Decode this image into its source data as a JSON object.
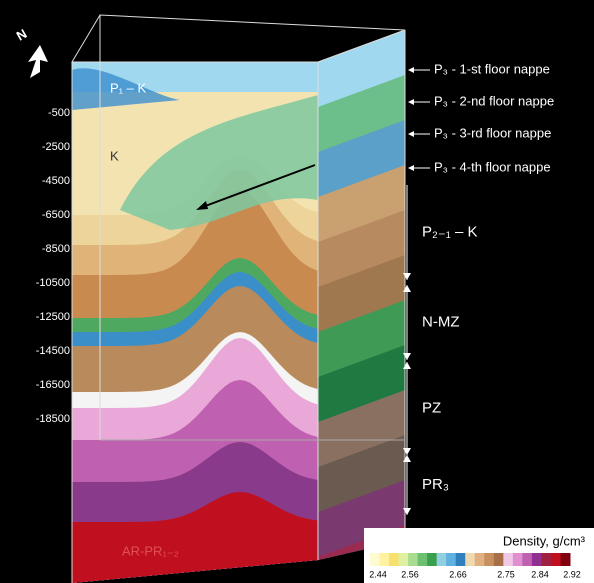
{
  "north": "N",
  "depth_labels": [
    "-500",
    "-2500",
    "-4500",
    "-6500",
    "-8500",
    "-10500",
    "-12500",
    "-14500",
    "-16500",
    "-18500"
  ],
  "nappes": [
    "P₃ - 1-st floor nappe",
    "P₃ - 2-nd floor nappe",
    "P₃ - 3-rd floor nappe",
    "P₃ - 4-th floor nappe"
  ],
  "units": [
    "P₂₋₁ – K",
    "N-MZ",
    "PZ",
    "PR₃"
  ],
  "inner_labels": [
    "P₁ – K",
    "K",
    "AR-PR₁₋₂"
  ],
  "legend": {
    "title": "Density, g/cm³",
    "ticks": [
      "2.44",
      "2.56",
      "2.66",
      "2.75",
      "2.84",
      "2.92"
    ]
  }
}
